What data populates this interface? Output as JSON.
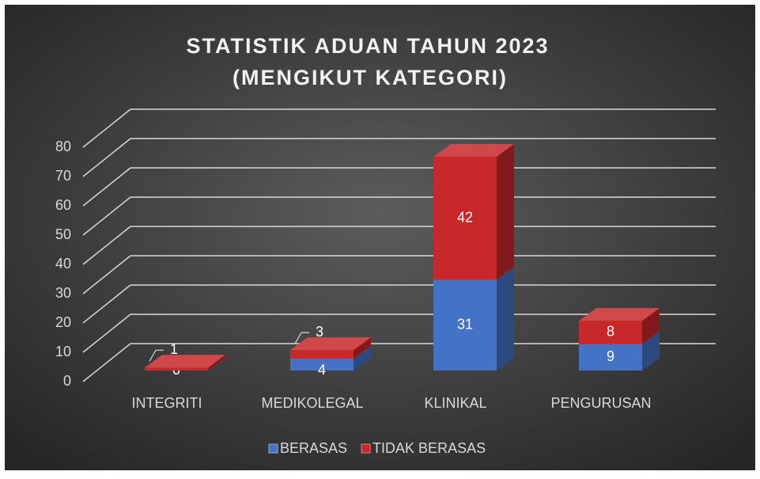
{
  "chart_data": {
    "type": "bar3d_stacked",
    "title": [
      "STATISTIK ADUAN TAHUN 2023",
      "(MENGIKUT KATEGORI)"
    ],
    "categories": [
      "INTEGRITI",
      "MEDIKOLEGAL",
      "KLINIKAL",
      "PENGURUSAN"
    ],
    "series": [
      {
        "name": "BERASAS",
        "color": "#4472c4",
        "values": [
          0,
          4,
          31,
          9
        ]
      },
      {
        "name": "TIDAK BERASAS",
        "color": "#c8282a",
        "values": [
          1,
          3,
          42,
          8
        ]
      }
    ],
    "ylim": [
      0,
      80
    ],
    "yticks": [
      0,
      10,
      20,
      30,
      40,
      50,
      60,
      70,
      80
    ],
    "grid": true,
    "legend": "bottom"
  }
}
